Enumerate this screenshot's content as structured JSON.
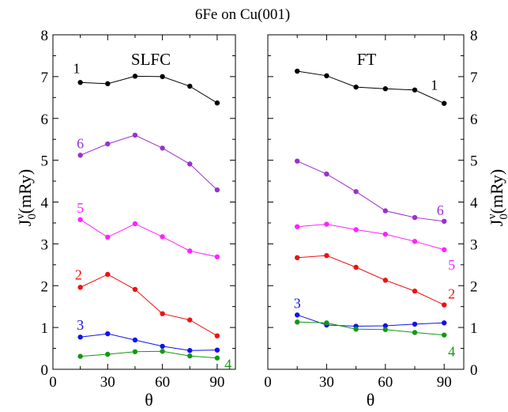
{
  "chart_data": {
    "type": "line",
    "title": "6Fe on Cu(001)",
    "ylabel_left": {
      "main": "J",
      "sub": "0",
      "sup": "ν",
      "unit": "(mRy)"
    },
    "ylabel_right": {
      "main": "J",
      "sub": "0",
      "sup": "ν",
      "unit": "(mRy)"
    },
    "ylim": [
      0,
      8
    ],
    "yticks": [
      0,
      1,
      2,
      3,
      4,
      5,
      6,
      7,
      8
    ],
    "grid": false,
    "panels": [
      {
        "name": "SLFC",
        "title": "SLFC",
        "xlabel": "θ",
        "xlim": [
          0,
          100
        ],
        "xticks": [
          0,
          30,
          60,
          90
        ],
        "x": [
          15,
          30,
          45,
          60,
          75,
          90
        ],
        "series": [
          {
            "name": "1",
            "color": "#000000",
            "values": [
              6.86,
              6.83,
              7.01,
              7.0,
              6.77,
              6.37
            ],
            "label_x": 13,
            "label_y": 7.2,
            "label_anchor": "middle"
          },
          {
            "name": "6",
            "color": "#9a2fcf",
            "values": [
              5.12,
              5.39,
              5.6,
              5.29,
              4.91,
              4.29
            ],
            "label_x": 15,
            "label_y": 5.4,
            "label_anchor": "middle"
          },
          {
            "name": "5",
            "color": "#ff22ff",
            "values": [
              3.58,
              3.16,
              3.48,
              3.17,
              2.83,
              2.69
            ],
            "label_x": 15,
            "label_y": 3.86,
            "label_anchor": "middle"
          },
          {
            "name": "2",
            "color": "#ee1111",
            "values": [
              1.96,
              2.27,
              1.91,
              1.33,
              1.18,
              0.8
            ],
            "label_x": 14,
            "label_y": 2.26,
            "label_anchor": "middle"
          },
          {
            "name": "3",
            "color": "#1111ee",
            "values": [
              0.77,
              0.85,
              0.7,
              0.55,
              0.45,
              0.46
            ],
            "label_x": 15,
            "label_y": 1.06,
            "label_anchor": "middle"
          },
          {
            "name": "4",
            "color": "#119911",
            "values": [
              0.31,
              0.36,
              0.42,
              0.43,
              0.32,
              0.27
            ],
            "label_x": 94,
            "label_y": 0.12,
            "label_anchor": "start"
          }
        ]
      },
      {
        "name": "FT",
        "title": "FT",
        "xlabel": "θ",
        "xlim": [
          0,
          100
        ],
        "xticks": [
          0,
          30,
          60,
          90
        ],
        "x": [
          15,
          30,
          45,
          60,
          75,
          90
        ],
        "series": [
          {
            "name": "1",
            "color": "#000000",
            "values": [
              7.13,
              7.02,
              6.75,
              6.71,
              6.68,
              6.36
            ],
            "label_x": 85,
            "label_y": 6.8,
            "label_anchor": "middle"
          },
          {
            "name": "6",
            "color": "#9a2fcf",
            "values": [
              4.98,
              4.67,
              4.25,
              3.79,
              3.63,
              3.54
            ],
            "label_x": 88,
            "label_y": 3.8,
            "label_anchor": "middle"
          },
          {
            "name": "5",
            "color": "#ff22ff",
            "values": [
              3.41,
              3.47,
              3.34,
              3.23,
              3.06,
              2.86
            ],
            "label_x": 92,
            "label_y": 2.5,
            "label_anchor": "start"
          },
          {
            "name": "2",
            "color": "#ee1111",
            "values": [
              2.67,
              2.72,
              2.44,
              2.13,
              1.87,
              1.54
            ],
            "label_x": 92,
            "label_y": 1.81,
            "label_anchor": "start"
          },
          {
            "name": "3",
            "color": "#1111ee",
            "values": [
              1.3,
              1.06,
              1.03,
              1.04,
              1.08,
              1.11
            ],
            "label_x": 15,
            "label_y": 1.58,
            "label_anchor": "middle"
          },
          {
            "name": "4",
            "color": "#119911",
            "values": [
              1.13,
              1.11,
              0.96,
              0.95,
              0.88,
              0.82
            ],
            "label_x": 92,
            "label_y": 0.43,
            "label_anchor": "start"
          }
        ]
      }
    ]
  }
}
